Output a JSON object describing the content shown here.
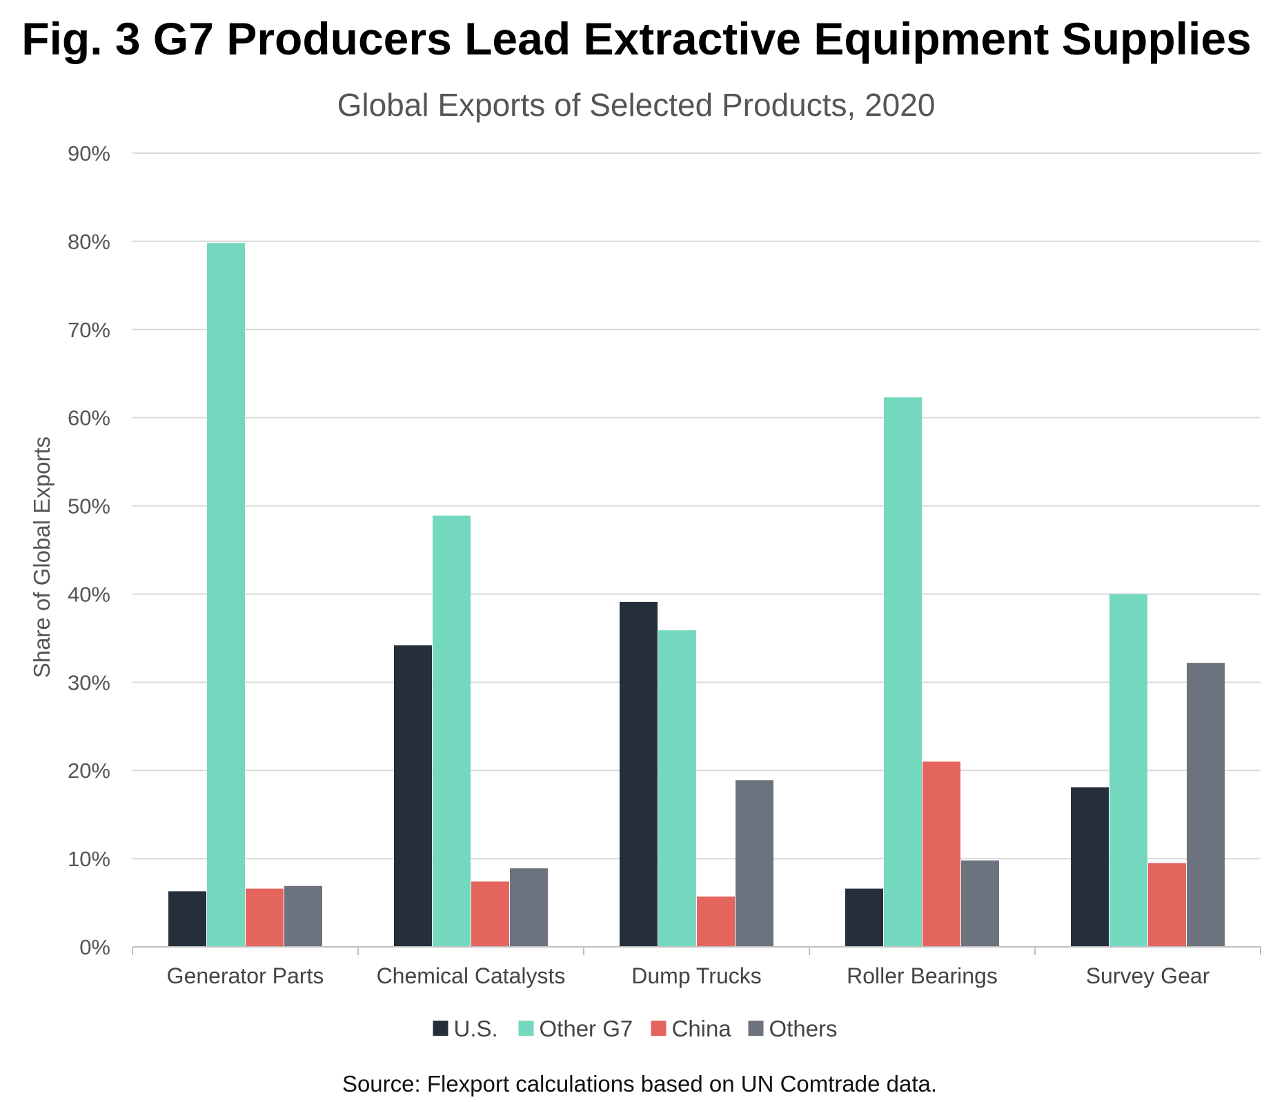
{
  "figure_title": "Fig. 3 G7 Producers Lead Extractive Equipment Supplies",
  "source": "Source: Flexport calculations based on UN Comtrade data.",
  "colors": {
    "grid": "#d9d9d9",
    "axis": "#bfbfbf"
  },
  "chart_data": {
    "type": "bar",
    "title": "Global Exports of Selected Products, 2020",
    "xlabel": "",
    "ylabel": "Share of Global Exports",
    "ylim": [
      0,
      90
    ],
    "yticks": [
      {
        "value": 0,
        "label": "0%"
      },
      {
        "value": 10,
        "label": "10%"
      },
      {
        "value": 20,
        "label": "20%"
      },
      {
        "value": 30,
        "label": "30%"
      },
      {
        "value": 40,
        "label": "40%"
      },
      {
        "value": 50,
        "label": "50%"
      },
      {
        "value": 60,
        "label": "60%"
      },
      {
        "value": 70,
        "label": "70%"
      },
      {
        "value": 80,
        "label": "80%"
      },
      {
        "value": 90,
        "label": "90%"
      }
    ],
    "grid": true,
    "legend_position": "bottom",
    "categories": [
      "Generator Parts",
      "Chemical Catalysts",
      "Dump Trucks",
      "Roller Bearings",
      "Survey Gear"
    ],
    "series": [
      {
        "name": "U.S.",
        "color": "#252f3c",
        "values": [
          6.3,
          34.2,
          39.1,
          6.6,
          18.1
        ]
      },
      {
        "name": "Other G7",
        "color": "#74d8bf",
        "values": [
          79.8,
          48.9,
          35.9,
          62.3,
          40.0
        ]
      },
      {
        "name": "China",
        "color": "#e4645e",
        "values": [
          6.6,
          7.4,
          5.7,
          21.0,
          9.5
        ]
      },
      {
        "name": "Others",
        "color": "#6c737e",
        "values": [
          6.9,
          8.9,
          18.9,
          9.8,
          32.2
        ]
      }
    ]
  }
}
